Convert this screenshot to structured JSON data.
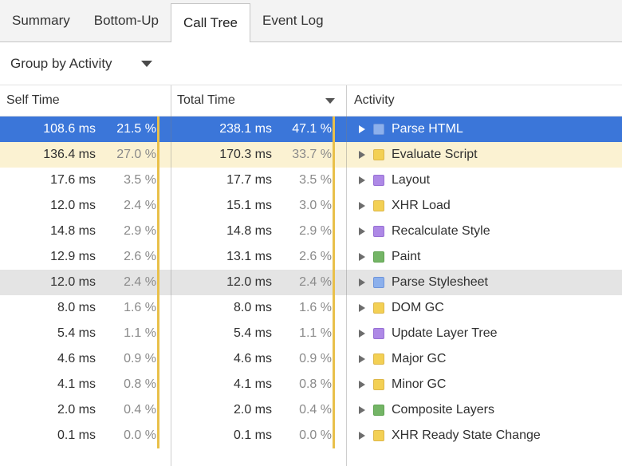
{
  "tabs": [
    {
      "label": "Summary",
      "selected": false
    },
    {
      "label": "Bottom-Up",
      "selected": false
    },
    {
      "label": "Call Tree",
      "selected": true
    },
    {
      "label": "Event Log",
      "selected": false
    }
  ],
  "toolbar": {
    "group_by_label": "Group by Activity"
  },
  "table": {
    "columns": {
      "self": "Self Time",
      "total": "Total Time",
      "activity": "Activity"
    },
    "sort": {
      "column": "total",
      "direction": "desc"
    },
    "rows": [
      {
        "self_ms": "108.6 ms",
        "self_pct": "21.5 %",
        "total_ms": "238.1 ms",
        "total_pct": "47.1 %",
        "activity": "Parse HTML",
        "category": "loading",
        "state": "selected"
      },
      {
        "self_ms": "136.4 ms",
        "self_pct": "27.0 %",
        "total_ms": "170.3 ms",
        "total_pct": "33.7 %",
        "activity": "Evaluate Script",
        "category": "scripting",
        "state": "highlighted"
      },
      {
        "self_ms": "17.6 ms",
        "self_pct": "3.5 %",
        "total_ms": "17.7 ms",
        "total_pct": "3.5 %",
        "activity": "Layout",
        "category": "rendering",
        "state": ""
      },
      {
        "self_ms": "12.0 ms",
        "self_pct": "2.4 %",
        "total_ms": "15.1 ms",
        "total_pct": "3.0 %",
        "activity": "XHR Load",
        "category": "scripting",
        "state": ""
      },
      {
        "self_ms": "14.8 ms",
        "self_pct": "2.9 %",
        "total_ms": "14.8 ms",
        "total_pct": "2.9 %",
        "activity": "Recalculate Style",
        "category": "rendering",
        "state": ""
      },
      {
        "self_ms": "12.9 ms",
        "self_pct": "2.6 %",
        "total_ms": "13.1 ms",
        "total_pct": "2.6 %",
        "activity": "Paint",
        "category": "painting",
        "state": ""
      },
      {
        "self_ms": "12.0 ms",
        "self_pct": "2.4 %",
        "total_ms": "12.0 ms",
        "total_pct": "2.4 %",
        "activity": "Parse Stylesheet",
        "category": "loading",
        "state": "hover"
      },
      {
        "self_ms": "8.0 ms",
        "self_pct": "1.6 %",
        "total_ms": "8.0 ms",
        "total_pct": "1.6 %",
        "activity": "DOM GC",
        "category": "scripting",
        "state": ""
      },
      {
        "self_ms": "5.4 ms",
        "self_pct": "1.1 %",
        "total_ms": "5.4 ms",
        "total_pct": "1.1 %",
        "activity": "Update Layer Tree",
        "category": "rendering",
        "state": ""
      },
      {
        "self_ms": "4.6 ms",
        "self_pct": "0.9 %",
        "total_ms": "4.6 ms",
        "total_pct": "0.9 %",
        "activity": "Major GC",
        "category": "scripting",
        "state": ""
      },
      {
        "self_ms": "4.1 ms",
        "self_pct": "0.8 %",
        "total_ms": "4.1 ms",
        "total_pct": "0.8 %",
        "activity": "Minor GC",
        "category": "scripting",
        "state": ""
      },
      {
        "self_ms": "2.0 ms",
        "self_pct": "0.4 %",
        "total_ms": "2.0 ms",
        "total_pct": "0.4 %",
        "activity": "Composite Layers",
        "category": "painting",
        "state": ""
      },
      {
        "self_ms": "0.1 ms",
        "self_pct": "0.0 %",
        "total_ms": "0.1 ms",
        "total_pct": "0.0 %",
        "activity": "XHR Ready State Change",
        "category": "scripting",
        "state": ""
      }
    ]
  },
  "colors": {
    "selected_row": "#3B76D9",
    "highlighted_row": "#FBF2D2",
    "hover_row": "#E4E4E4",
    "percent_bar": "#E9C04A",
    "categories": {
      "loading": {
        "fill": "#8CB0EC",
        "border": "#6E95DB"
      },
      "scripting": {
        "fill": "#F3D054",
        "border": "#DDB74A"
      },
      "rendering": {
        "fill": "#AE89E6",
        "border": "#9770D4"
      },
      "painting": {
        "fill": "#74B566",
        "border": "#5FA351"
      }
    }
  }
}
